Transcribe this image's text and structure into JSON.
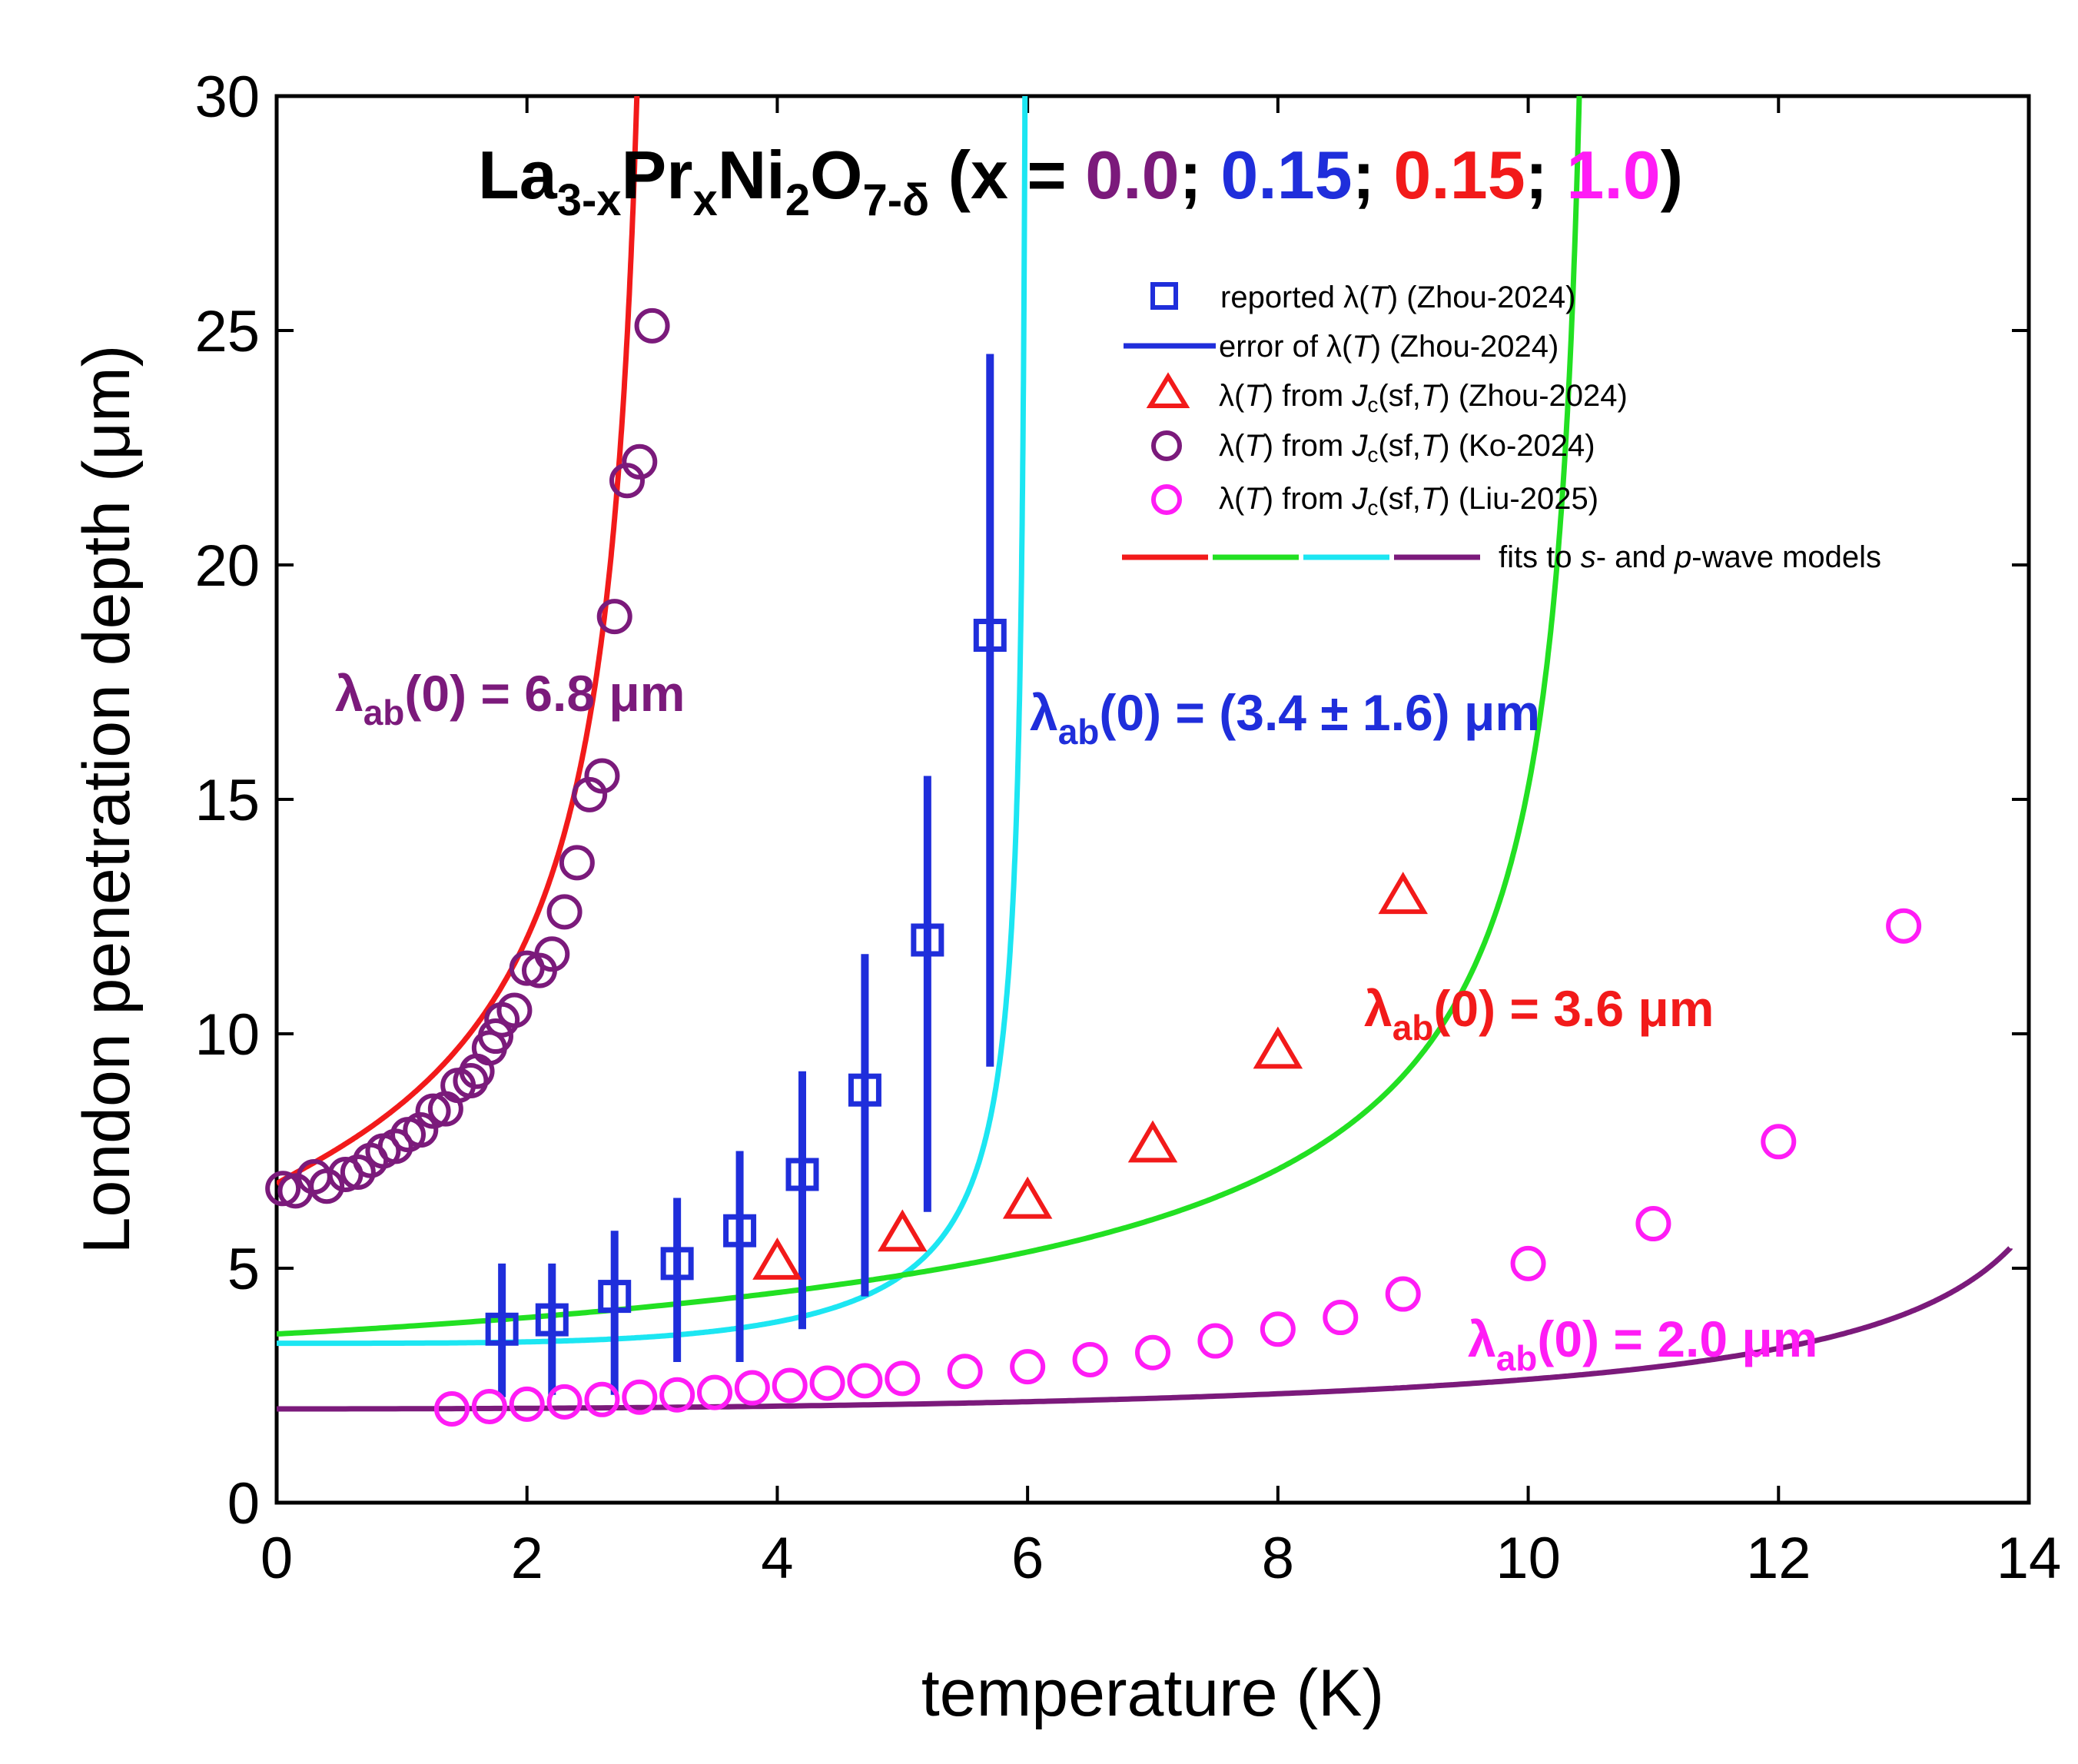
{
  "chart_data": {
    "type": "scatter",
    "xlabel": "temperature (K)",
    "ylabel": "London penetration depth (μm)",
    "xlim": [
      0,
      14
    ],
    "ylim": [
      0,
      30
    ],
    "x_ticks": [
      "0",
      "2",
      "4",
      "6",
      "8",
      "10",
      "12",
      "14"
    ],
    "y_ticks": [
      "0",
      "5",
      "10",
      "15",
      "20",
      "25",
      "30"
    ],
    "title": {
      "base": "La",
      "sub1": "3-x",
      "mid1": "Pr",
      "sub2": "x",
      "mid2": "Ni",
      "sub3": "2",
      "mid3": "O",
      "sub4": "7-δ",
      "open": " (x = ",
      "v1": "0.0",
      "sep1": "; ",
      "v2": "0.15",
      "sep2": "; ",
      "v3": "0.15",
      "sep3": "; ",
      "v4": "1.0",
      "close": ")",
      "colors": {
        "v1": "#7B1A7B",
        "v2": "#1F2EDB",
        "v3": "#F21A1A",
        "v4": "#FF1CF5"
      }
    },
    "legend": [
      {
        "pre": "reported λ(",
        "it1": "T",
        "post": ") (Zhou-2024)",
        "marker": "square",
        "color": "#1F2EDB"
      },
      {
        "pre": "error of λ(",
        "it1": "T",
        "post": ") (Zhou-2024)",
        "marker": "line",
        "color": "#1F2EDB"
      },
      {
        "pre": "λ(",
        "it1": "T",
        "mid": ") from ",
        "it2": "J",
        "sub": "c",
        "mid2": "(sf,",
        "it3": "T",
        "post": ") (Zhou-2024)",
        "marker": "triangle",
        "color": "#F21A1A"
      },
      {
        "pre": "λ(",
        "it1": "T",
        "mid": ") from ",
        "it2": "J",
        "sub": "c",
        "mid2": "(sf,",
        "it3": "T",
        "post": ") (Ko-2024)",
        "marker": "circle",
        "color": "#7B1A7B"
      },
      {
        "pre": "λ(",
        "it1": "T",
        "mid": ") from ",
        "it2": "J",
        "sub": "c",
        "mid2": "(sf,",
        "it3": "T",
        "post": ") (Liu-2025)",
        "marker": "circle",
        "color": "#FF1CF5"
      },
      {
        "pre": "fits to ",
        "it1": "s",
        "mid": "- and ",
        "it2": "p",
        "post": "-wave models",
        "marker": "multiline",
        "colors": [
          "#F21A1A",
          "#22E022",
          "#1CE6F2",
          "#7B1A7B"
        ]
      }
    ],
    "annotations": [
      {
        "pre": "λ",
        "sub": "ab",
        "post": "(0) = 6.8 μm",
        "color": "#7B1A7B"
      },
      {
        "pre": "λ",
        "sub": "ab",
        "post": "(0) = (3.4 ± 1.6) μm",
        "color": "#1F2EDB"
      },
      {
        "pre": "λ",
        "sub": "ab",
        "post": "(0) = 3.6 μm",
        "color": "#F21A1A"
      },
      {
        "pre": "λ",
        "sub": "ab",
        "post": "(0) = 2.0 μm",
        "color": "#FF1CF5"
      }
    ],
    "series": [
      {
        "name": "Ko-2024",
        "kind": "circles",
        "color": "#7B1A7B",
        "points": [
          [
            0.05,
            6.7
          ],
          [
            0.15,
            6.65
          ],
          [
            0.3,
            6.95
          ],
          [
            0.4,
            6.75
          ],
          [
            0.55,
            7.0
          ],
          [
            0.65,
            7.05
          ],
          [
            0.75,
            7.3
          ],
          [
            0.85,
            7.5
          ],
          [
            0.95,
            7.6
          ],
          [
            1.05,
            7.85
          ],
          [
            1.15,
            7.95
          ],
          [
            1.25,
            8.35
          ],
          [
            1.35,
            8.4
          ],
          [
            1.45,
            8.9
          ],
          [
            1.55,
            9.0
          ],
          [
            1.6,
            9.2
          ],
          [
            1.7,
            9.7
          ],
          [
            1.75,
            9.95
          ],
          [
            1.8,
            10.3
          ],
          [
            1.9,
            10.5
          ],
          [
            2.0,
            11.4
          ],
          [
            2.1,
            11.35
          ],
          [
            2.2,
            11.7
          ],
          [
            2.3,
            12.6
          ],
          [
            2.4,
            13.65
          ],
          [
            2.5,
            15.1
          ],
          [
            2.6,
            15.5
          ],
          [
            2.7,
            18.9
          ],
          [
            2.8,
            21.8
          ],
          [
            2.9,
            22.2
          ],
          [
            3.0,
            25.1
          ]
        ]
      },
      {
        "name": "Liu-2025",
        "kind": "circles",
        "color": "#FF1CF5",
        "points": [
          [
            1.4,
            2.0
          ],
          [
            1.7,
            2.05
          ],
          [
            2.0,
            2.1
          ],
          [
            2.3,
            2.15
          ],
          [
            2.6,
            2.2
          ],
          [
            2.9,
            2.25
          ],
          [
            3.2,
            2.3
          ],
          [
            3.5,
            2.35
          ],
          [
            3.8,
            2.45
          ],
          [
            4.1,
            2.5
          ],
          [
            4.4,
            2.55
          ],
          [
            4.7,
            2.6
          ],
          [
            5.0,
            2.65
          ],
          [
            5.5,
            2.8
          ],
          [
            6.0,
            2.9
          ],
          [
            6.5,
            3.05
          ],
          [
            7.0,
            3.2
          ],
          [
            7.5,
            3.45
          ],
          [
            8.0,
            3.7
          ],
          [
            8.5,
            3.95
          ],
          [
            9.0,
            4.45
          ],
          [
            10.0,
            5.1
          ],
          [
            11.0,
            5.95
          ],
          [
            12.0,
            7.7
          ],
          [
            13.0,
            12.3
          ]
        ]
      },
      {
        "name": "Zhou-2024 Jc",
        "kind": "triangles",
        "color": "#F21A1A",
        "points": [
          [
            4.0,
            5.1
          ],
          [
            5.0,
            5.7
          ],
          [
            6.0,
            6.4
          ],
          [
            7.0,
            7.6
          ],
          [
            8.0,
            9.6
          ],
          [
            9.0,
            12.9
          ]
        ]
      },
      {
        "name": "Zhou-2024 reported",
        "kind": "squares",
        "color": "#1F2EDB",
        "points": [
          [
            1.8,
            3.7,
            2.25,
            5.1
          ],
          [
            2.2,
            3.9,
            2.3,
            5.1
          ],
          [
            2.7,
            4.4,
            2.3,
            5.8
          ],
          [
            3.2,
            5.1,
            3.0,
            6.5
          ],
          [
            3.7,
            5.8,
            3.0,
            7.5
          ],
          [
            4.2,
            7.0,
            3.7,
            9.2
          ],
          [
            4.7,
            8.8,
            4.4,
            11.7
          ],
          [
            5.2,
            12.0,
            6.2,
            15.5
          ],
          [
            5.7,
            18.5,
            9.3,
            24.5
          ]
        ]
      }
    ],
    "fits": [
      {
        "color": "#F21A1A",
        "lambda0": 6.8,
        "Tc": 3.05,
        "p": 0.91,
        "tmin": 0.0,
        "tmax": 3.045,
        "dashed_from": 0,
        "clip_below_x": 2.72,
        "clip_keep_above_y": 0
      },
      {
        "color": "#1CE6F2",
        "lambda0": 3.4,
        "Tc": 6.0,
        "p": 3.7,
        "tmin": 0.0,
        "tmax": 5.995
      },
      {
        "color": "#22E022",
        "lambda0": 3.6,
        "Tc": 10.55,
        "p": 1.07,
        "tmin": 0.0,
        "tmax": 10.54
      },
      {
        "color": "#7B1A7B",
        "lambda0": 2.0,
        "Tc": 14.8,
        "p": 2.2,
        "tmin": 0.0,
        "tmax": 13.85
      }
    ]
  }
}
